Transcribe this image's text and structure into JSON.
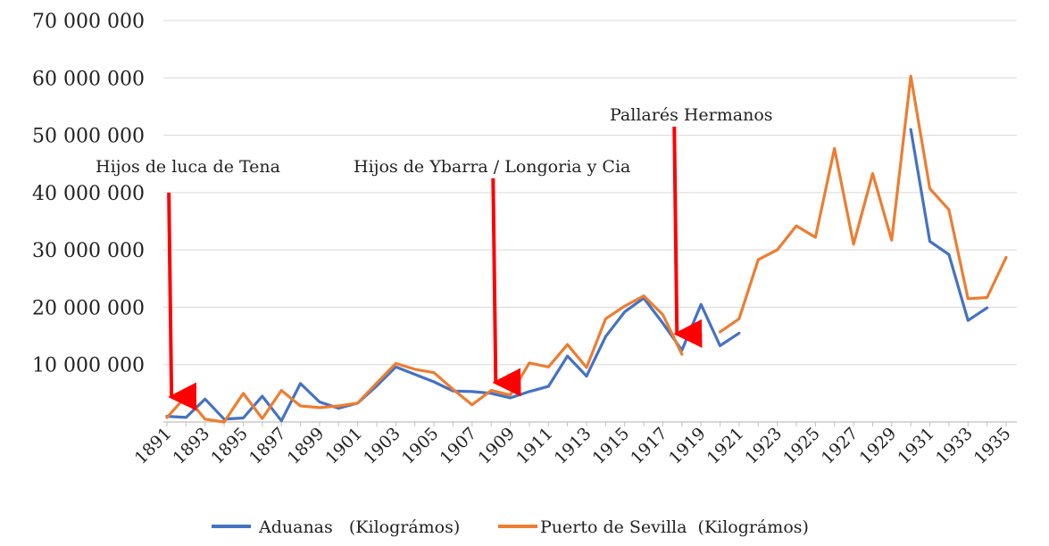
{
  "chart_data": {
    "type": "line",
    "title": "",
    "xlabel": "",
    "ylabel": "",
    "ylim": [
      0,
      70000000
    ],
    "xlim": [
      1891,
      1935
    ],
    "y_ticks": [
      "70 000 000",
      "60 000 000",
      "50 000 000",
      "40 000 000",
      "30 000 000",
      "20 000 000",
      "10 000 000"
    ],
    "x_ticks": [
      "1891",
      "1893",
      "1895",
      "1897",
      "1899",
      "1901",
      "1903",
      "1905",
      "1907",
      "1909",
      "1911",
      "1913",
      "1915",
      "1917",
      "1919",
      "1921",
      "1923",
      "1925",
      "1927",
      "1929",
      "1931",
      "1933",
      "1935"
    ],
    "grid": true,
    "legend_position": "bottom",
    "series": [
      {
        "name": "Aduanas   (Kilográmos)",
        "color": "#4472C4",
        "points": [
          [
            1891,
            1000000
          ],
          [
            1892,
            800000
          ],
          [
            1893,
            4000000
          ],
          [
            1894,
            500000
          ],
          [
            1895,
            700000
          ],
          [
            1896,
            4500000
          ],
          [
            1897,
            200000
          ],
          [
            1898,
            6700000
          ],
          [
            1899,
            3500000
          ],
          [
            1900,
            2400000
          ],
          [
            1901,
            3300000
          ],
          [
            1902,
            6300000
          ],
          [
            1903,
            9600000
          ],
          [
            1904,
            8300000
          ],
          [
            1905,
            7000000
          ],
          [
            1906,
            5400000
          ],
          [
            1907,
            5300000
          ],
          [
            1908,
            5000000
          ],
          [
            1909,
            4200000
          ],
          [
            1910,
            5300000
          ],
          [
            1911,
            6200000
          ],
          [
            1912,
            11500000
          ],
          [
            1913,
            8000000
          ],
          [
            1914,
            14900000
          ],
          [
            1915,
            19200000
          ],
          [
            1916,
            21600000
          ],
          [
            1917,
            17200000
          ],
          [
            1918,
            12500000
          ],
          [
            1919,
            20500000
          ],
          [
            1920,
            13300000
          ],
          [
            1921,
            15500000
          ],
          null,
          null,
          null,
          null,
          null,
          null,
          null,
          null,
          [
            1930,
            51000000
          ],
          [
            1931,
            31500000
          ],
          [
            1932,
            29200000
          ],
          [
            1933,
            17700000
          ],
          [
            1934,
            19900000
          ]
        ]
      },
      {
        "name": "Puerto de Sevilla  (Kilográmos)",
        "color": "#ED7D31",
        "points": [
          [
            1891,
            800000
          ],
          [
            1892,
            4500000
          ],
          [
            1893,
            500000
          ],
          [
            1894,
            0
          ],
          [
            1895,
            5000000
          ],
          [
            1896,
            600000
          ],
          [
            1897,
            5500000
          ],
          [
            1898,
            2800000
          ],
          [
            1899,
            2500000
          ],
          [
            1900,
            2800000
          ],
          [
            1901,
            3300000
          ],
          [
            1902,
            6800000
          ],
          [
            1903,
            10200000
          ],
          [
            1904,
            9200000
          ],
          [
            1905,
            8600000
          ],
          [
            1906,
            5700000
          ],
          [
            1907,
            3000000
          ],
          [
            1908,
            5500000
          ],
          [
            1909,
            4700000
          ],
          [
            1910,
            10300000
          ],
          [
            1911,
            9600000
          ],
          [
            1912,
            13500000
          ],
          [
            1913,
            9500000
          ],
          [
            1914,
            18000000
          ],
          [
            1915,
            20200000
          ],
          [
            1916,
            22000000
          ],
          [
            1917,
            18700000
          ],
          [
            1918,
            11800000
          ],
          null,
          [
            1920,
            15700000
          ],
          [
            1921,
            18000000
          ],
          [
            1922,
            28300000
          ],
          [
            1923,
            30000000
          ],
          [
            1924,
            34200000
          ],
          [
            1925,
            32200000
          ],
          [
            1926,
            47700000
          ],
          [
            1927,
            31000000
          ],
          [
            1928,
            43300000
          ],
          [
            1929,
            31700000
          ],
          [
            1930,
            60300000
          ],
          [
            1931,
            40700000
          ],
          [
            1932,
            37000000
          ],
          [
            1933,
            21500000
          ],
          [
            1934,
            21700000
          ],
          [
            1935,
            28700000
          ]
        ]
      }
    ],
    "annotations": [
      {
        "text": "Hijos de luca de Tena",
        "arrow_year": 1891.1,
        "arrow_top_value": 40000000,
        "arrow_tip_value": 2500000
      },
      {
        "text": "Hijos de Ybarra / Longoria y Cia",
        "arrow_year": 1908.1,
        "arrow_top_value": 42500000,
        "arrow_tip_value": 5000000
      },
      {
        "text": "Pallarés Hermanos",
        "arrow_year": 1917.6,
        "arrow_top_value": 51500000,
        "arrow_tip_value": 13500000
      }
    ],
    "arrow_color": "#FF0000"
  }
}
